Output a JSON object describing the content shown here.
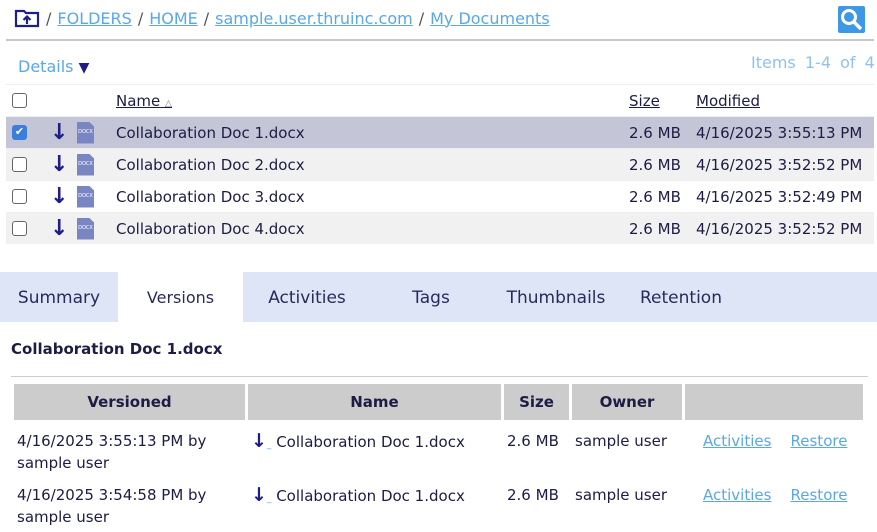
{
  "breadcrumb": {
    "items": [
      "FOLDERS",
      "HOME",
      "sample.user.thruinc.com",
      "My Documents"
    ],
    "separator": "/"
  },
  "details_label": "Details",
  "items_count": {
    "label": "Items",
    "range": "1-4",
    "of": "of",
    "total": "4"
  },
  "file_table": {
    "headers": {
      "name": "Name",
      "size": "Size",
      "modified": "Modified"
    },
    "rows": [
      {
        "name": "Collaboration Doc 1.docx",
        "size": "2.6 MB",
        "modified": "4/16/2025 3:55:13 PM",
        "checked": true
      },
      {
        "name": "Collaboration Doc 2.docx",
        "size": "2.6 MB",
        "modified": "4/16/2025 3:52:52 PM",
        "checked": false
      },
      {
        "name": "Collaboration Doc 3.docx",
        "size": "2.6 MB",
        "modified": "4/16/2025 3:52:49 PM",
        "checked": false
      },
      {
        "name": "Collaboration Doc 4.docx",
        "size": "2.6 MB",
        "modified": "4/16/2025 3:52:52 PM",
        "checked": false
      }
    ],
    "file_icon_label": "DOCX"
  },
  "tabs": [
    "Summary",
    "Versions",
    "Activities",
    "Tags",
    "Thumbnails",
    "Retention"
  ],
  "active_tab": "Versions",
  "detail_title": "Collaboration Doc 1.docx",
  "versions": {
    "headers": [
      "Versioned",
      "Name",
      "Size",
      "Owner",
      ""
    ],
    "rows": [
      {
        "versioned": "4/16/2025 3:55:13 PM by sample user",
        "name": "Collaboration Doc 1.docx",
        "size": "2.6 MB",
        "owner": "sample user",
        "activities": "Activities",
        "restore": "Restore"
      },
      {
        "versioned": "4/16/2025 3:54:58 PM by sample user",
        "name": "Collaboration Doc 1.docx",
        "size": "2.6 MB",
        "owner": "sample user",
        "activities": "Activities",
        "restore": "Restore"
      }
    ]
  },
  "colors": {
    "link": "#5aa7e8",
    "selected_row": "#c5c5d8",
    "tab_bar": "#dde5f6",
    "icon": "#1e1e86"
  }
}
